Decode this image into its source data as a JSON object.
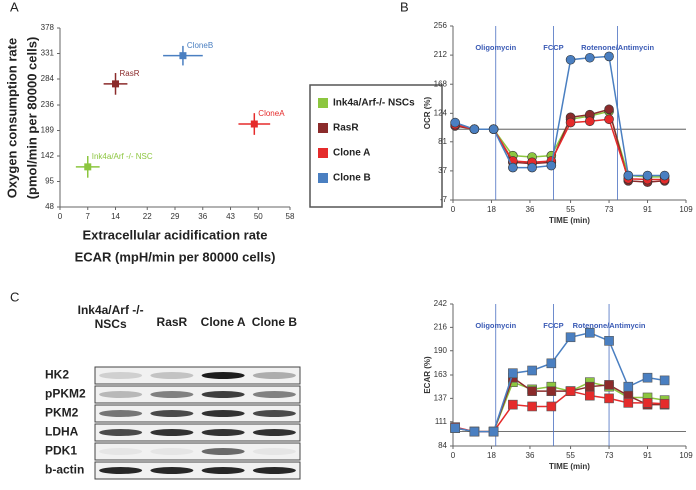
{
  "chart_data": [
    {
      "type": "scatter",
      "panel": "A",
      "xlabel": [
        "Extracellular acidification rate",
        "ECAR (mpH/min per 80000 cells)"
      ],
      "ylabel": [
        "Oxygen consumption rate",
        "(pmol/min per 80000 cells)"
      ],
      "xlim": [
        0,
        58
      ],
      "xticks": [
        0,
        7,
        14,
        22,
        29,
        36,
        43,
        50,
        58
      ],
      "ylim": [
        48,
        378
      ],
      "yticks": [
        48,
        95,
        142,
        189,
        236,
        284,
        331,
        378
      ],
      "series": [
        {
          "name": "Ink4a/Arf-/- NSCs",
          "color": "#8cc63f",
          "annotation": "Ink4a/Arf -/- NSC",
          "x": [
            7
          ],
          "x_error": [
            3
          ],
          "values": [
            122
          ],
          "y_error": [
            20
          ]
        },
        {
          "name": "RasR",
          "color": "#8b2b2b",
          "annotation": "RasR",
          "x": [
            14
          ],
          "x_error": [
            3
          ],
          "values": [
            275
          ],
          "y_error": [
            20
          ]
        },
        {
          "name": "Clone A",
          "color": "#e52b2b",
          "annotation": "CloneA",
          "x": [
            49
          ],
          "x_error": [
            4
          ],
          "values": [
            201
          ],
          "y_error": [
            20
          ]
        },
        {
          "name": "Clone B",
          "color": "#4a7fc1",
          "annotation": "CloneB",
          "x": [
            31
          ],
          "x_error": [
            5
          ],
          "values": [
            327
          ],
          "y_error": [
            18
          ]
        }
      ]
    },
    {
      "type": "line",
      "panel": "B",
      "marker": "circle",
      "ylabel": "OCR (%)",
      "xlabel": "TIME (min)",
      "xlim": [
        0,
        109
      ],
      "xticks": [
        0,
        18,
        36,
        55,
        73,
        91,
        109
      ],
      "ylim": [
        -7,
        256
      ],
      "yticks": [
        -7,
        37,
        81,
        124,
        168,
        212,
        256
      ],
      "reference_y": 100,
      "events": [
        {
          "label": "Oligomycin",
          "x": 20
        },
        {
          "label": "FCCP",
          "x": 47
        },
        {
          "label": "Rotenone/Antimycin",
          "x": 77
        }
      ],
      "x": [
        1,
        10,
        19,
        28,
        37,
        46,
        55,
        64,
        73,
        82,
        91,
        99
      ],
      "series": [
        {
          "name": "Ink4a/Arf-/- NSCs",
          "color": "#8cc63f",
          "values": [
            108,
            100,
            100,
            60,
            58,
            60,
            115,
            120,
            127,
            30,
            28,
            28
          ]
        },
        {
          "name": "RasR",
          "color": "#8b2b2b",
          "values": [
            105,
            100,
            100,
            50,
            48,
            50,
            118,
            122,
            130,
            22,
            20,
            22
          ]
        },
        {
          "name": "Clone A",
          "color": "#e52b2b",
          "values": [
            107,
            100,
            100,
            52,
            50,
            52,
            110,
            112,
            115,
            25,
            24,
            24
          ]
        },
        {
          "name": "Clone B",
          "color": "#4a7fc1",
          "values": [
            110,
            100,
            100,
            42,
            42,
            45,
            205,
            208,
            210,
            30,
            30,
            30
          ]
        }
      ]
    },
    {
      "type": "blot",
      "panel": "C",
      "columns": [
        "Ink4a/Arf -/- NSCs",
        "RasR",
        "Clone A",
        "Clone B"
      ],
      "rows": [
        "HK2",
        "pPKM2",
        "PKM2",
        "LDHA",
        "PDK1",
        "b-actin"
      ]
    },
    {
      "type": "line",
      "marker": "square",
      "ylabel": "ECAR (%)",
      "xlabel": "TIME (min)",
      "xlim": [
        0,
        109
      ],
      "xticks": [
        0,
        18,
        36,
        55,
        73,
        91,
        109
      ],
      "ylim": [
        84,
        242
      ],
      "yticks": [
        84,
        111,
        137,
        163,
        190,
        216,
        242
      ],
      "reference_y": 100,
      "events": [
        {
          "label": "Oligomycin",
          "x": 20
        },
        {
          "label": "FCCP",
          "x": 47
        },
        {
          "label": "Rotenone/Antimycin",
          "x": 73
        }
      ],
      "x": [
        1,
        10,
        19,
        28,
        37,
        46,
        55,
        64,
        73,
        82,
        91,
        99
      ],
      "series": [
        {
          "name": "Ink4a/Arf-/- NSCs",
          "color": "#8cc63f",
          "values": [
            104,
            100,
            100,
            155,
            147,
            150,
            145,
            155,
            150,
            138,
            138,
            135
          ]
        },
        {
          "name": "RasR",
          "color": "#8b2b2b",
          "values": [
            104,
            100,
            100,
            160,
            145,
            145,
            145,
            150,
            152,
            140,
            130,
            130
          ]
        },
        {
          "name": "Clone A",
          "color": "#e52b2b",
          "values": [
            105,
            100,
            100,
            130,
            128,
            128,
            145,
            140,
            137,
            132,
            132,
            131
          ]
        },
        {
          "name": "Clone B",
          "color": "#4a7fc1",
          "values": [
            104,
            100,
            100,
            165,
            168,
            176,
            205,
            210,
            201,
            150,
            160,
            157
          ]
        }
      ]
    }
  ]
}
